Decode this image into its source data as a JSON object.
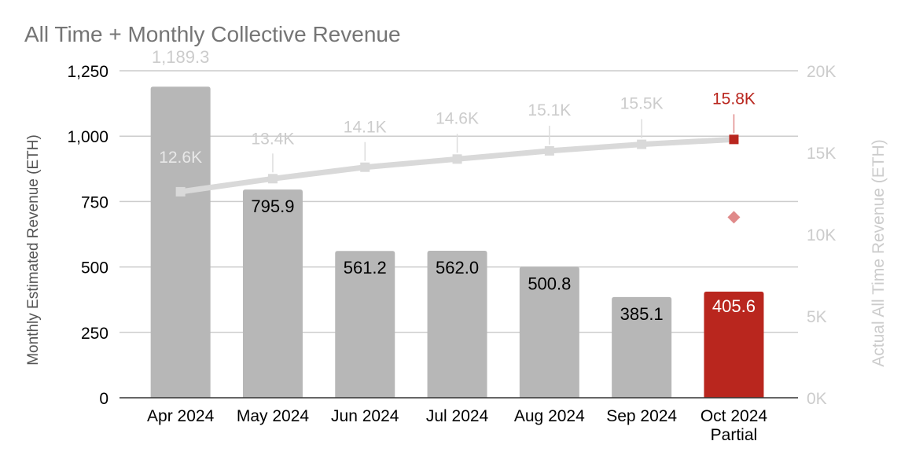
{
  "chart_data": {
    "type": "bar",
    "title": "All Time + Monthly Collective Revenue",
    "categories": [
      "Apr 2024",
      "May 2024",
      "Jun 2024",
      "Jul 2024",
      "Aug 2024",
      "Sep 2024",
      "Oct 2024\nPartial"
    ],
    "ylabel": "Monthly Estimated Revenue (ETH)",
    "y2label": "Actual All Time Revenue (ETH)",
    "ylim": [
      0,
      1250
    ],
    "yticks": [
      "0",
      "250",
      "500",
      "750",
      "1,000",
      "1,250"
    ],
    "y2lim": [
      0,
      20000
    ],
    "y2ticks": [
      "0K",
      "5K",
      "10K",
      "15K",
      "20K"
    ],
    "grid": true,
    "series": [
      {
        "type": "bar",
        "axis": "left",
        "values": [
          1189.3,
          795.9,
          561.2,
          562.0,
          500.8,
          385.1,
          405.6
        ],
        "labels": [
          "1,189.3",
          "795.9",
          "561.2",
          "562.0",
          "500.8",
          "385.1",
          "405.6"
        ]
      },
      {
        "type": "line",
        "axis": "right",
        "values": [
          12600,
          13400,
          14100,
          14600,
          15100,
          15500,
          15800
        ],
        "labels": [
          "12.6K",
          "13.4K",
          "14.1K",
          "14.6K",
          "15.1K",
          "15.5K",
          "15.8K"
        ]
      }
    ],
    "colors": {
      "bar": "#b7b7b7",
      "highlight": "#b9261e",
      "line": "#d9d9d9",
      "faded_label": "#cccccc",
      "title": "#757575",
      "axis_text": "#000000",
      "right_axis_text": "#cccccc",
      "grid": "#cccccc",
      "diamond": "#e08a8a"
    },
    "highlight_index": 6,
    "diamond_marker": {
      "index": 6,
      "value": 690
    }
  }
}
